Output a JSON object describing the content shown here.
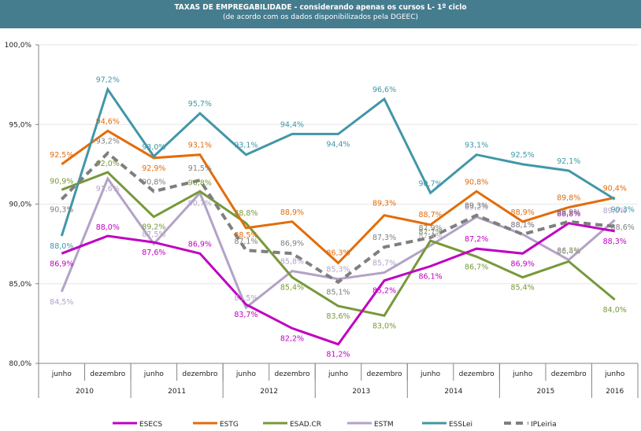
{
  "header": {
    "title": "TAXAS DE EMPREGABILIDADE - considerando apenas os cursos L- 1º ciclo",
    "subtitle": "(de acordo com os dados disponibilizados pela DGEEC)"
  },
  "chart_data": {
    "type": "line",
    "title": "TAXAS DE EMPREGABILIDADE - considerando apenas os cursos L- 1º ciclo",
    "subtitle": "(de acordo com os dados disponibilizados pela DGEEC)",
    "xlabel": "",
    "ylabel": "",
    "ylim": [
      80,
      100
    ],
    "yticks": [
      80,
      85,
      90,
      95,
      100
    ],
    "ytick_labels": [
      "80,0%",
      "85,0%",
      "90,0%",
      "95,0%",
      "100,0%"
    ],
    "grid": true,
    "legend_position": "bottom",
    "categories": [
      "junho",
      "dezembro",
      "junho",
      "dezembro",
      "junho",
      "dezembro",
      "junho",
      "dezembro",
      "junho",
      "dezembro",
      "junho",
      "dezembro",
      "junho"
    ],
    "year_groups": [
      {
        "label": "2010",
        "count": 2
      },
      {
        "label": "2011",
        "count": 2
      },
      {
        "label": "2012",
        "count": 2
      },
      {
        "label": "2013",
        "count": 2
      },
      {
        "label": "2014",
        "count": 2
      },
      {
        "label": "2015",
        "count": 2
      },
      {
        "label": "2016",
        "count": 1
      }
    ],
    "series": [
      {
        "name": "ESECS",
        "color": "#c000c0",
        "dashed": false,
        "values": [
          86.9,
          88.0,
          87.6,
          86.9,
          83.7,
          82.2,
          81.2,
          85.2,
          86.1,
          87.2,
          86.9,
          88.8,
          88.3
        ],
        "labels": [
          "86,9%",
          "88,0%",
          "87,6%",
          "86,9%",
          "83,7%",
          "82,2%",
          "81,2%",
          "85,2%",
          "86,1%",
          "87,2%",
          "86,9%",
          "88,8%",
          "88,3%"
        ]
      },
      {
        "name": "ESTG",
        "color": "#e36c0a",
        "dashed": false,
        "values": [
          92.5,
          94.6,
          92.9,
          93.1,
          88.5,
          88.9,
          86.3,
          89.3,
          88.7,
          90.8,
          88.9,
          89.8,
          90.4
        ],
        "labels": [
          "92,5%",
          "94,6%",
          "92,9%",
          "93,1%",
          "88,5%",
          "88,9%",
          "86,3%",
          "89,3%",
          "88,7%",
          "90,8%",
          "88,9%",
          "89,8%",
          "90,4%"
        ]
      },
      {
        "name": "ESAD.CR",
        "color": "#77993a",
        "dashed": false,
        "values": [
          90.9,
          92.0,
          89.2,
          90.8,
          88.8,
          85.4,
          83.6,
          83.0,
          87.7,
          86.7,
          85.4,
          86.4,
          84.0
        ],
        "labels": [
          "90,9%",
          "92,0%",
          "89,2%",
          "90,8%",
          "88,8%",
          "85,4%",
          "83,6%",
          "83,0%",
          "87,7%",
          "86,7%",
          "85,4%",
          "86,4%",
          "84,0%"
        ]
      },
      {
        "name": "ESTM",
        "color": "#b3a2c7",
        "dashed": false,
        "values": [
          84.5,
          91.6,
          87.5,
          90.7,
          83.5,
          85.8,
          85.3,
          85.7,
          87.4,
          89.2,
          88.1,
          86.5,
          89.0
        ],
        "labels": [
          "84,5%",
          "91,6%",
          "87,5%",
          "90,7%",
          "83,5%",
          "85,8%",
          "85,3%",
          "85,7%",
          "87,4%",
          "89,2%",
          "88,1%",
          "86,5%",
          "89,0%"
        ]
      },
      {
        "name": "ESSLei",
        "color": "#4197a8",
        "dashed": false,
        "values": [
          88.0,
          97.2,
          93.0,
          95.7,
          93.1,
          94.4,
          94.4,
          96.6,
          90.7,
          93.1,
          92.5,
          92.1,
          90.3
        ],
        "labels": [
          "88,0%",
          "97,2%",
          "93,0%",
          "95,7%",
          "93,1%",
          "94,4%",
          "94,4%",
          "96,6%",
          "90,7%",
          "93,1%",
          "92,5%",
          "92,1%",
          "90,3%"
        ]
      },
      {
        "name": "IPLeiria",
        "color": "#7f7f7f",
        "dashed": true,
        "values": [
          90.3,
          93.2,
          90.8,
          91.5,
          87.1,
          86.9,
          85.1,
          87.3,
          87.9,
          89.3,
          88.1,
          88.9,
          88.6
        ],
        "labels": [
          "90,3%",
          "93,2%",
          "90,8%",
          "91,5%",
          "87,1%",
          "86,9%",
          "85,1%",
          "87,3%",
          "87,9%",
          "89,3%",
          "88,1%",
          "88,9%",
          "88,6%"
        ]
      }
    ]
  }
}
